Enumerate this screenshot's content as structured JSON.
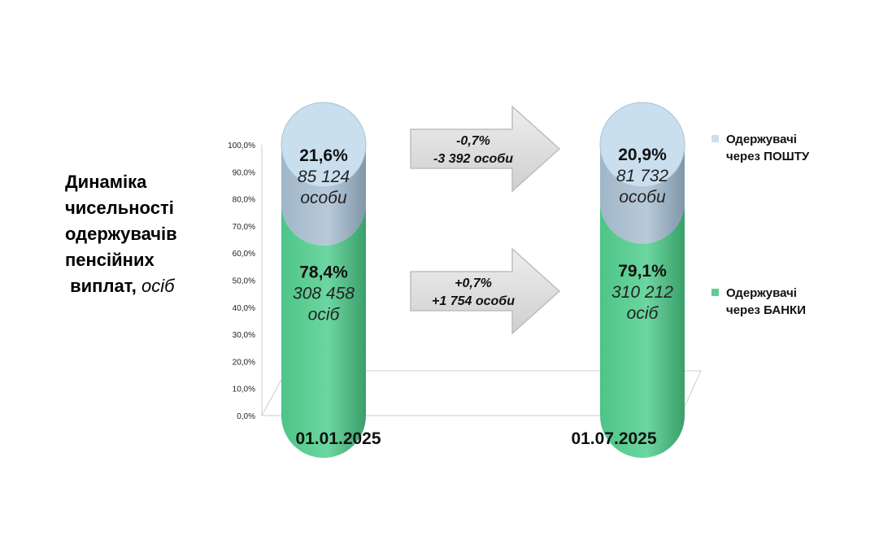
{
  "title": {
    "lines": [
      "Динаміка",
      "чисельності",
      "одержувачів",
      "пенсійних"
    ],
    "last_line": "виплат,",
    "unit": "осіб"
  },
  "colors": {
    "post": "#c9dfee",
    "post_side": "#8ea9bd",
    "bank": "#5ccf94",
    "bank_side": "#3aa56c",
    "arrow": "#d9d9d9"
  },
  "chart_data": {
    "type": "bar",
    "stacked": true,
    "categories": [
      "01.01.2025",
      "01.07.2025"
    ],
    "y_ticks": [
      "0,0%",
      "10,0%",
      "20,0%",
      "30,0%",
      "40,0%",
      "50,0%",
      "60,0%",
      "70,0%",
      "80,0%",
      "90,0%",
      "100,0%"
    ],
    "ylim": [
      0,
      100
    ],
    "series": [
      {
        "name": "Одержувачі через БАНКИ",
        "legend_lines": [
          "Одержувачі",
          "через БАНКИ"
        ],
        "values": [
          78.4,
          79.1
        ],
        "pct_labels": [
          "78,4%",
          "79,1%"
        ],
        "count_labels": [
          [
            "308 458",
            "осіб"
          ],
          [
            "310 212",
            "осіб"
          ]
        ]
      },
      {
        "name": "Одержувачі через ПОШТУ",
        "legend_lines": [
          "Одержувачі",
          "через ПОШТУ"
        ],
        "values": [
          21.6,
          20.9
        ],
        "pct_labels": [
          "21,6%",
          "20,9%"
        ],
        "count_labels": [
          [
            "85 124",
            "особи"
          ],
          [
            "81 732",
            "особи"
          ]
        ]
      }
    ],
    "changes": [
      {
        "series": "Одержувачі через ПОШТУ",
        "lines": [
          "-0,7%",
          "-3  392 особи"
        ]
      },
      {
        "series": "Одержувачі через БАНКИ",
        "lines": [
          "+0,7%",
          "+1 754 особи"
        ]
      }
    ]
  }
}
